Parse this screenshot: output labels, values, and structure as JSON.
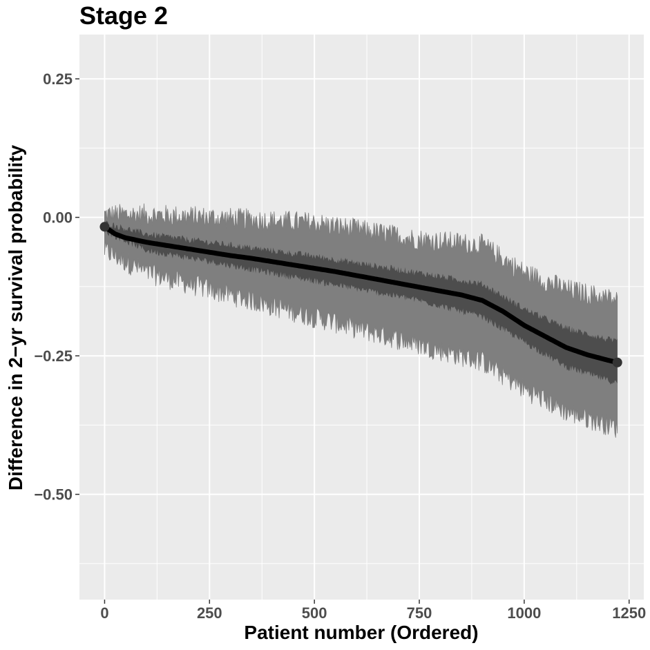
{
  "chart_data": {
    "type": "line",
    "title": "Stage 2",
    "xlabel": "Patient number (Ordered)",
    "ylabel": "Difference in 2−yr survival probability",
    "xlim": [
      -60,
      1285
    ],
    "ylim": [
      -0.69,
      0.33
    ],
    "x_ticks": [
      0,
      250,
      500,
      750,
      1000,
      1250
    ],
    "x_tick_labels": [
      "0",
      "250",
      "500",
      "750",
      "1000",
      "1250"
    ],
    "y_ticks": [
      0.25,
      0.0,
      -0.25,
      -0.5
    ],
    "y_tick_labels": [
      "0.25",
      "0.00",
      "−0.25",
      "−0.50"
    ],
    "grid": true,
    "n_patients": 1222,
    "series": [
      {
        "role": "point-estimate",
        "color": "#000000",
        "x": [
          0,
          25,
          50,
          100,
          150,
          200,
          250,
          300,
          350,
          400,
          450,
          500,
          550,
          600,
          650,
          700,
          750,
          800,
          850,
          900,
          950,
          1000,
          1050,
          1100,
          1150,
          1200,
          1222
        ],
        "y": [
          -0.017,
          -0.03,
          -0.037,
          -0.045,
          -0.051,
          -0.057,
          -0.063,
          -0.069,
          -0.074,
          -0.08,
          -0.086,
          -0.092,
          -0.098,
          -0.105,
          -0.112,
          -0.119,
          -0.126,
          -0.133,
          -0.14,
          -0.15,
          -0.17,
          -0.195,
          -0.215,
          -0.235,
          -0.248,
          -0.258,
          -0.262
        ]
      },
      {
        "role": "inner-band",
        "color": "#4d4d4d",
        "x": [
          0,
          100,
          250,
          500,
          750,
          900,
          1000,
          1100,
          1222
        ],
        "lower": [
          -0.025,
          -0.06,
          -0.08,
          -0.115,
          -0.15,
          -0.18,
          -0.225,
          -0.27,
          -0.3
        ],
        "upper": [
          -0.01,
          -0.03,
          -0.045,
          -0.07,
          -0.1,
          -0.12,
          -0.165,
          -0.2,
          -0.225
        ]
      },
      {
        "role": "outer-band",
        "color": "#7f7f7f",
        "x": [
          0,
          100,
          250,
          500,
          750,
          900,
          1000,
          1100,
          1222
        ],
        "lower": [
          -0.06,
          -0.1,
          -0.13,
          -0.18,
          -0.23,
          -0.26,
          -0.31,
          -0.35,
          -0.38
        ],
        "upper": [
          0.005,
          0.005,
          0.0,
          -0.01,
          -0.04,
          -0.05,
          -0.1,
          -0.13,
          -0.15
        ]
      }
    ]
  }
}
